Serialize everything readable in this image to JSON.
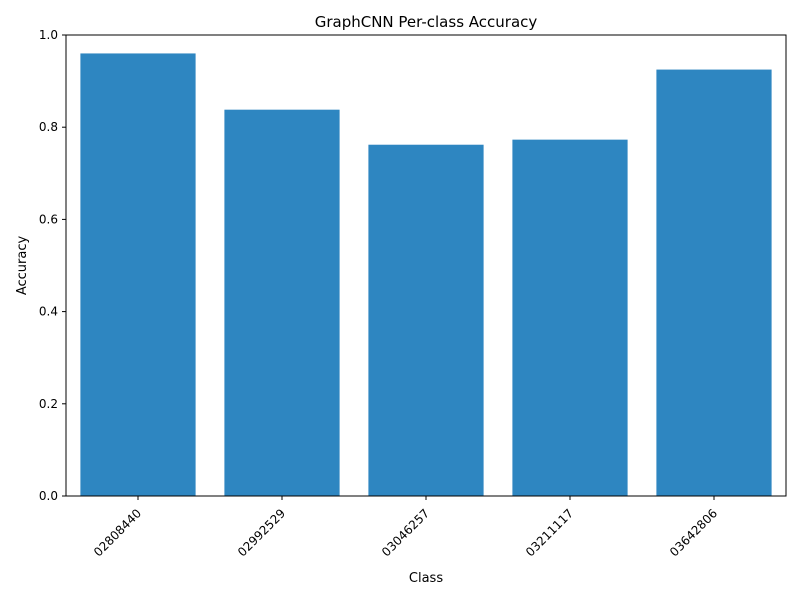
{
  "chart_data": {
    "type": "bar",
    "title": "GraphCNN Per-class Accuracy",
    "xlabel": "Class",
    "ylabel": "Accuracy",
    "categories": [
      "02808440",
      "02992529",
      "03046257",
      "03211117",
      "03642806"
    ],
    "values": [
      0.96,
      0.838,
      0.762,
      0.773,
      0.925
    ],
    "ylim": [
      0,
      1.0
    ],
    "yticks": [
      "0.0",
      "0.2",
      "0.4",
      "0.6",
      "0.8",
      "1.0"
    ],
    "grid": false,
    "bar_color": "#2e86c1"
  }
}
